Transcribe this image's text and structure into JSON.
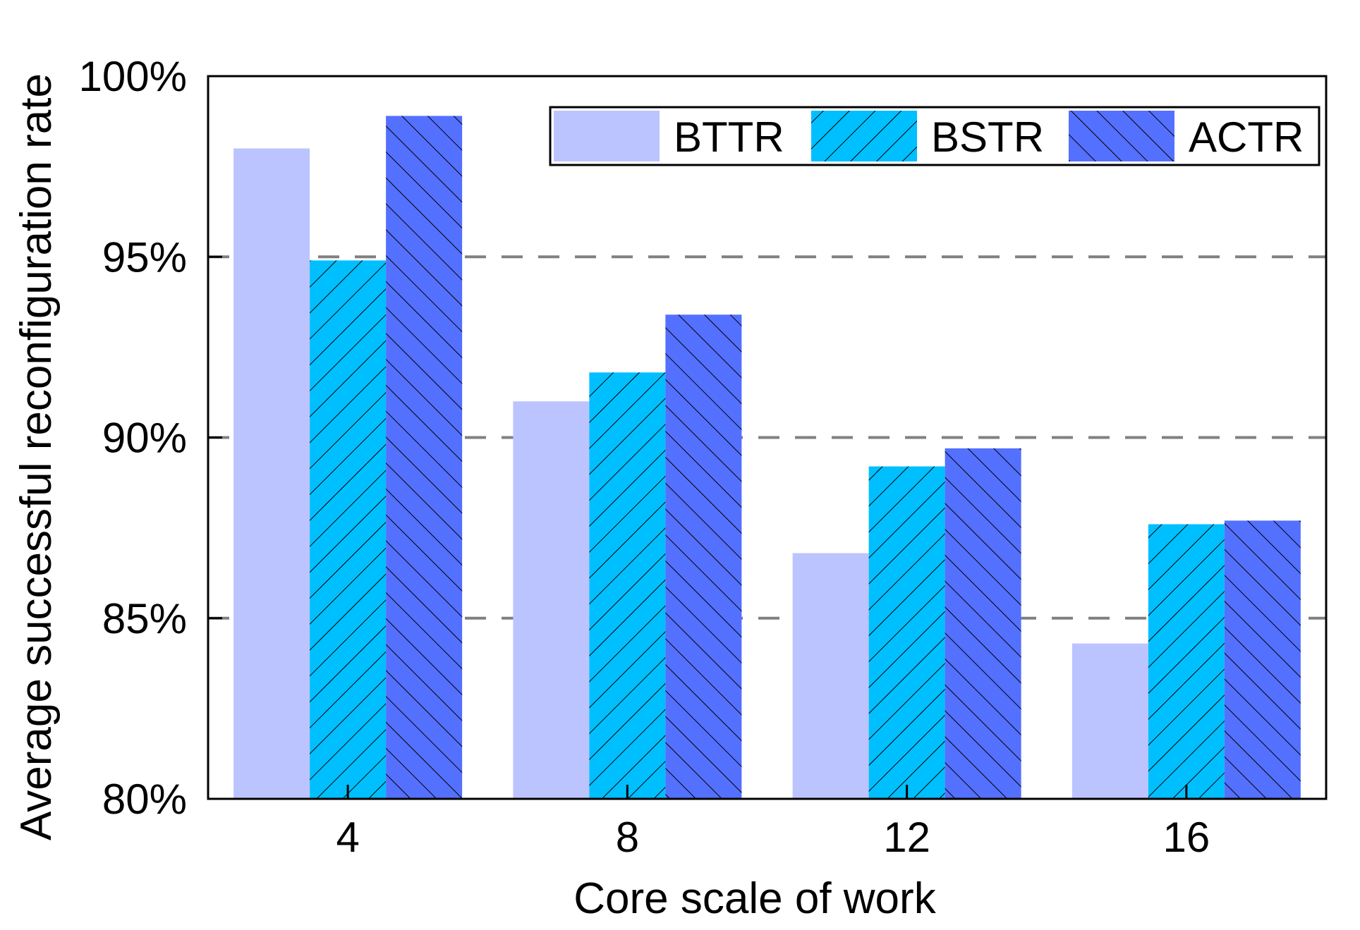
{
  "chart_data": {
    "type": "bar",
    "title": "",
    "xlabel": "Core scale of work",
    "ylabel": "Average successful reconfiguration rate",
    "categories": [
      "4",
      "8",
      "12",
      "16"
    ],
    "ylim": [
      80,
      100
    ],
    "yticks": [
      80,
      85,
      90,
      95,
      100
    ],
    "ytick_labels": [
      "80%",
      "85%",
      "90%",
      "95%",
      "100%"
    ],
    "gridlines": [
      85,
      90,
      95
    ],
    "legend_position": "top-right",
    "series": [
      {
        "name": "BTTR",
        "color": "#bcc4ff",
        "hatch": "none",
        "values": [
          98.0,
          91.0,
          86.8,
          84.3
        ]
      },
      {
        "name": "BSTR",
        "color": "#00bfff",
        "hatch": "forward",
        "values": [
          94.9,
          91.8,
          89.2,
          87.6
        ]
      },
      {
        "name": "ACTR",
        "color": "#5470ff",
        "hatch": "backward",
        "values": [
          98.9,
          93.4,
          89.7,
          87.7
        ]
      }
    ]
  }
}
